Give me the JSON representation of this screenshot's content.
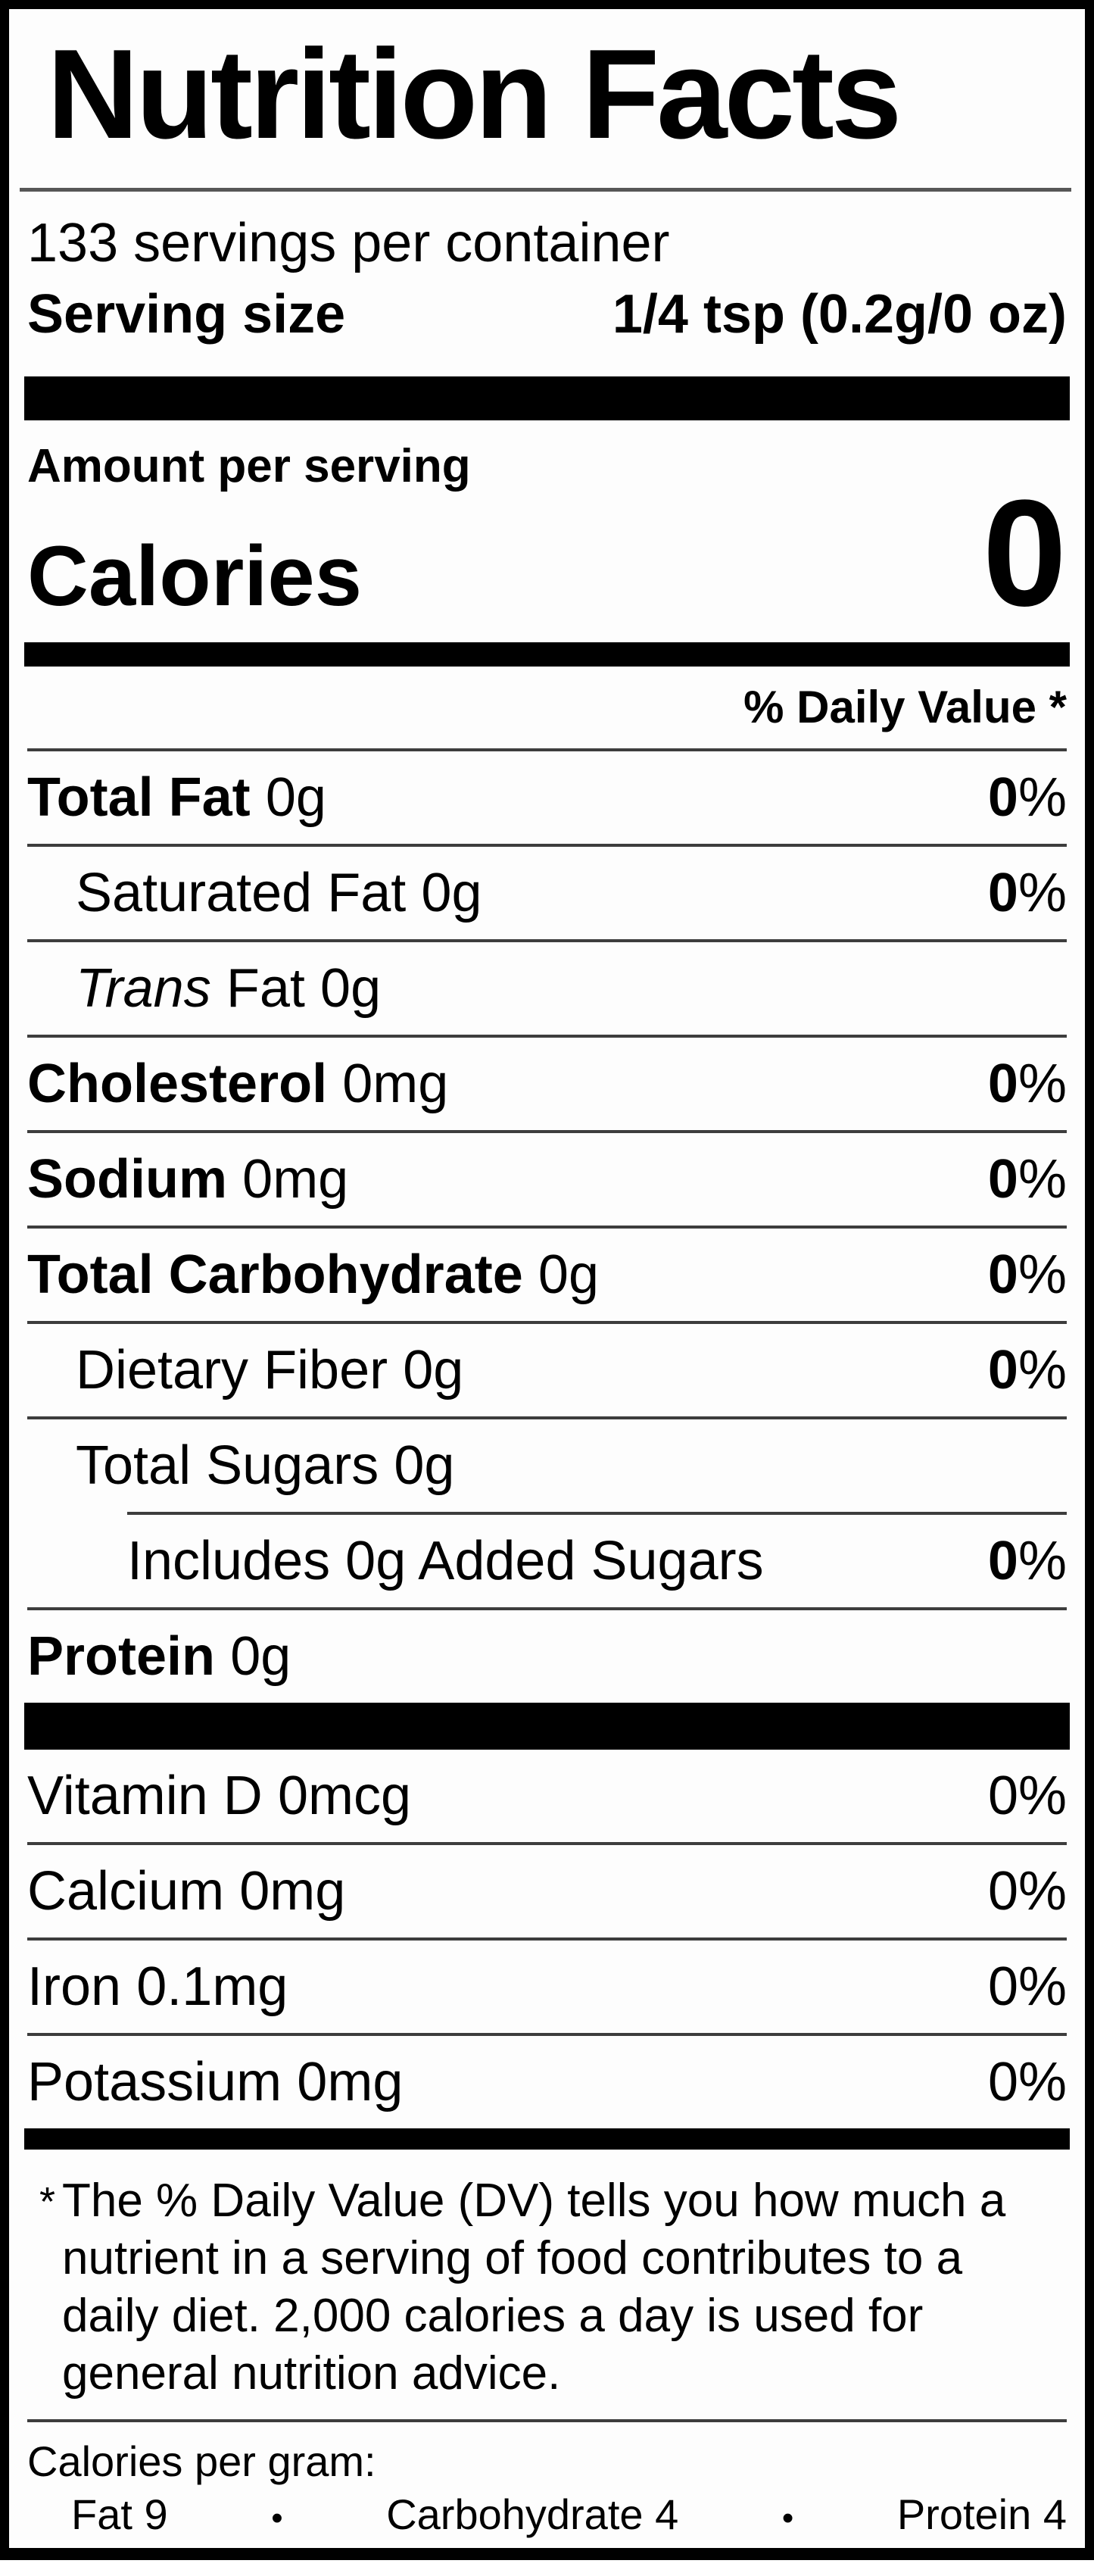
{
  "title": "Nutrition Facts",
  "servings_per_container": "133 servings per container",
  "serving_size": {
    "label": "Serving size",
    "value": "1/4 tsp (0.2g/0 oz)"
  },
  "amount_per_serving": "Amount per serving",
  "calories": {
    "label": "Calories",
    "value": "0"
  },
  "daily_value_header": "% Daily Value *",
  "nutrients": [
    {
      "name": "Total Fat",
      "amount": "0g",
      "dv_num": "0",
      "dv_sym": "%"
    },
    {
      "name": "Saturated Fat",
      "amount": "0g",
      "dv_num": "0",
      "dv_sym": "%"
    },
    {
      "name_italic": "Trans",
      "name_rest": "Fat",
      "amount": "0g"
    },
    {
      "name": "Cholesterol",
      "amount": "0mg",
      "dv_num": "0",
      "dv_sym": "%"
    },
    {
      "name": "Sodium",
      "amount": "0mg",
      "dv_num": "0",
      "dv_sym": "%"
    },
    {
      "name": "Total Carbohydrate",
      "amount": "0g",
      "dv_num": "0",
      "dv_sym": "%"
    },
    {
      "name": "Dietary Fiber",
      "amount": "0g",
      "dv_num": "0",
      "dv_sym": "%"
    },
    {
      "name": "Total Sugars",
      "amount": "0g"
    },
    {
      "name": "Includes 0g Added Sugars",
      "dv_num": "0",
      "dv_sym": "%"
    },
    {
      "name": "Protein",
      "amount": "0g"
    }
  ],
  "micronutrients": [
    {
      "name": "Vitamin D",
      "amount": "0mcg",
      "dv": "0%"
    },
    {
      "name": "Calcium",
      "amount": "0mg",
      "dv": "0%"
    },
    {
      "name": "Iron",
      "amount": "0.1mg",
      "dv": "0%"
    },
    {
      "name": "Potassium",
      "amount": "0mg",
      "dv": "0%"
    }
  ],
  "footnote": {
    "marker": "*",
    "lines": [
      "The % Daily Value (DV) tells you how much a",
      "nutrient in a serving of food contributes to a",
      "daily diet. 2,000 calories a day is used for",
      "general nutrition advice."
    ]
  },
  "calories_per_gram": {
    "heading": "Calories per gram:",
    "bullet": "•",
    "items": [
      "Fat 9",
      "Carbohydrate 4",
      "Protein 4"
    ]
  }
}
